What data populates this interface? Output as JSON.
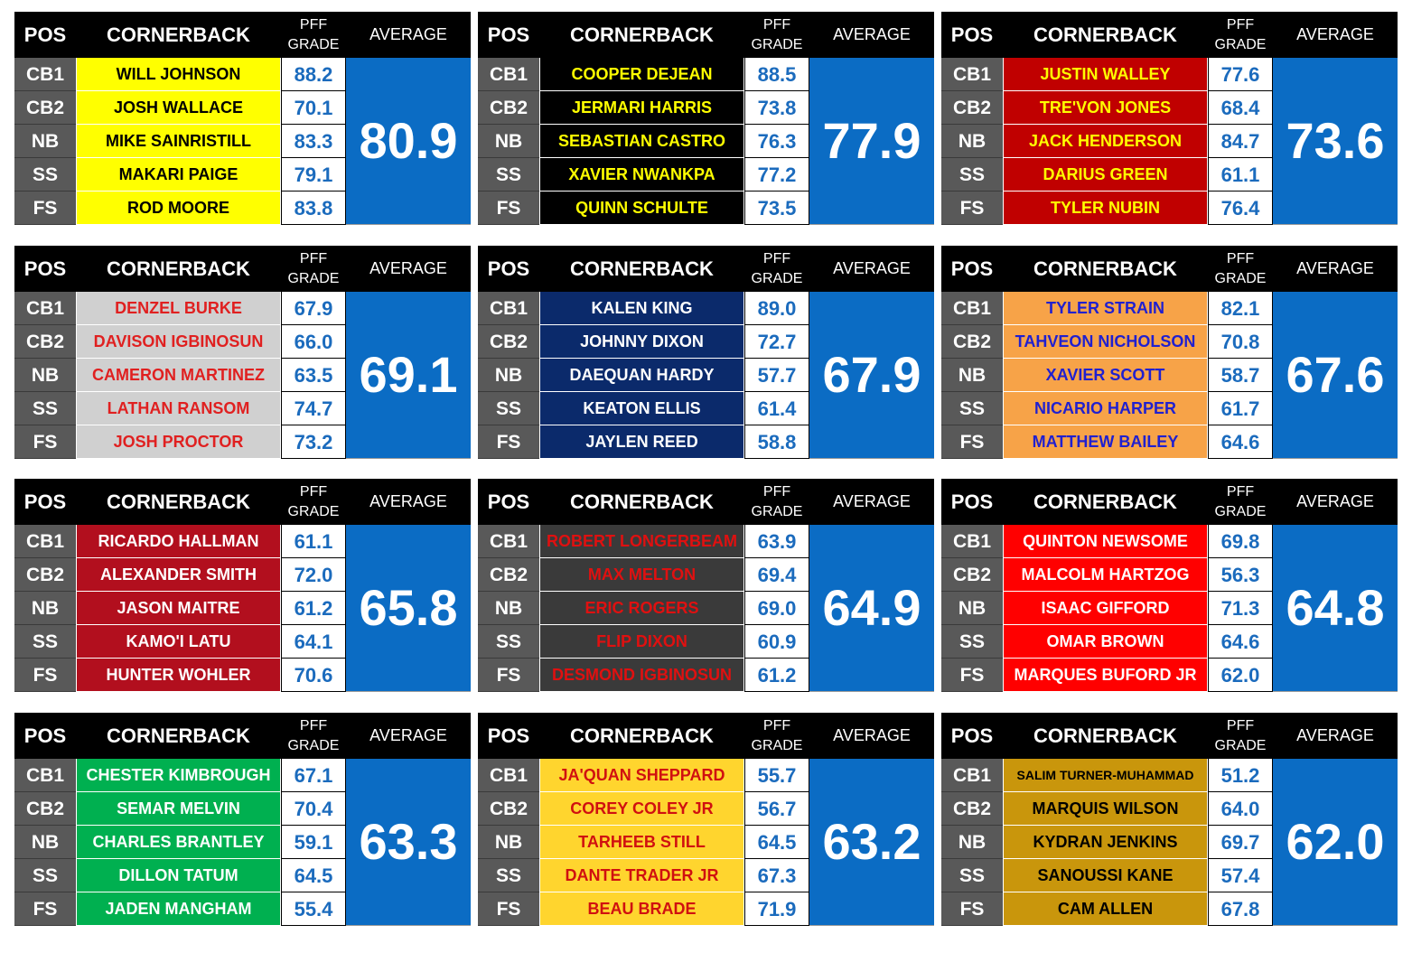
{
  "headers": {
    "pos": "POS",
    "cornerback": "CORNERBACK",
    "pff_line1": "PFF",
    "pff_line2": "GRADE",
    "average": "AVERAGE"
  },
  "positions": [
    "CB1",
    "CB2",
    "NB",
    "SS",
    "FS"
  ],
  "tables": [
    {
      "average": "80.9",
      "name_bg": "#ffff00",
      "name_color": "#000000",
      "rows": [
        {
          "name": "WILL JOHNSON",
          "grade": "88.2"
        },
        {
          "name": "JOSH WALLACE",
          "grade": "70.1"
        },
        {
          "name": "MIKE SAINRISTILL",
          "grade": "83.3"
        },
        {
          "name": "MAKARI PAIGE",
          "grade": "79.1"
        },
        {
          "name": "ROD MOORE",
          "grade": "83.8"
        }
      ]
    },
    {
      "average": "77.9",
      "name_bg": "#000000",
      "name_color": "#ffff00",
      "rows": [
        {
          "name": "COOPER DEJEAN",
          "grade": "88.5"
        },
        {
          "name": "JERMARI HARRIS",
          "grade": "73.8"
        },
        {
          "name": "SEBASTIAN CASTRO",
          "grade": "76.3"
        },
        {
          "name": "XAVIER NWANKPA",
          "grade": "77.2"
        },
        {
          "name": "QUINN SCHULTE",
          "grade": "73.5"
        }
      ]
    },
    {
      "average": "73.6",
      "name_bg": "#c00000",
      "name_color": "#ffff00",
      "rows": [
        {
          "name": "JUSTIN WALLEY",
          "grade": "77.6"
        },
        {
          "name": "TRE'VON JONES",
          "grade": "68.4"
        },
        {
          "name": "JACK HENDERSON",
          "grade": "84.7"
        },
        {
          "name": "DARIUS GREEN",
          "grade": "61.1"
        },
        {
          "name": "TYLER NUBIN",
          "grade": "76.4"
        }
      ]
    },
    {
      "average": "69.1",
      "name_bg": "#d0d0d0",
      "name_color": "#e02020",
      "rows": [
        {
          "name": "DENZEL BURKE",
          "grade": "67.9"
        },
        {
          "name": "DAVISON IGBINOSUN",
          "grade": "66.0"
        },
        {
          "name": "CAMERON MARTINEZ",
          "grade": "63.5"
        },
        {
          "name": "LATHAN RANSOM",
          "grade": "74.7"
        },
        {
          "name": "JOSH PROCTOR",
          "grade": "73.2"
        }
      ]
    },
    {
      "average": "67.9",
      "name_bg": "#0b2a6b",
      "name_color": "#ffffff",
      "rows": [
        {
          "name": "KALEN KING",
          "grade": "89.0"
        },
        {
          "name": "JOHNNY DIXON",
          "grade": "72.7"
        },
        {
          "name": "DAEQUAN HARDY",
          "grade": "57.7"
        },
        {
          "name": "KEATON ELLIS",
          "grade": "61.4"
        },
        {
          "name": "JAYLEN REED",
          "grade": "58.8"
        }
      ]
    },
    {
      "average": "67.6",
      "name_bg": "#f7a348",
      "name_color": "#2020d0",
      "rows": [
        {
          "name": "TYLER STRAIN",
          "grade": "82.1"
        },
        {
          "name": "TAHVEON NICHOLSON",
          "grade": "70.8"
        },
        {
          "name": "XAVIER SCOTT",
          "grade": "58.7"
        },
        {
          "name": "NICARIO HARPER",
          "grade": "61.7"
        },
        {
          "name": "MATTHEW BAILEY",
          "grade": "64.6"
        }
      ]
    },
    {
      "average": "65.8",
      "name_bg": "#b20f1e",
      "name_color": "#ffffff",
      "rows": [
        {
          "name": "RICARDO HALLMAN",
          "grade": "61.1"
        },
        {
          "name": "ALEXANDER SMITH",
          "grade": "72.0"
        },
        {
          "name": "JASON MAITRE",
          "grade": "61.2"
        },
        {
          "name": "KAMO'I LATU",
          "grade": "64.1"
        },
        {
          "name": "HUNTER WOHLER",
          "grade": "70.6"
        }
      ]
    },
    {
      "average": "64.9",
      "name_bg": "#3a3a3a",
      "name_color": "#e01010",
      "rows": [
        {
          "name": "ROBERT LONGERBEAM",
          "grade": "63.9"
        },
        {
          "name": "MAX MELTON",
          "grade": "69.4"
        },
        {
          "name": "ERIC ROGERS",
          "grade": "69.0"
        },
        {
          "name": "FLIP DIXON",
          "grade": "60.9"
        },
        {
          "name": "DESMOND IGBINOSUN",
          "grade": "61.2"
        }
      ]
    },
    {
      "average": "64.8",
      "name_bg": "#ff0000",
      "name_color": "#ffffff",
      "rows": [
        {
          "name": "QUINTON NEWSOME",
          "grade": "69.8"
        },
        {
          "name": "MALCOLM HARTZOG",
          "grade": "56.3"
        },
        {
          "name": "ISAAC GIFFORD",
          "grade": "71.3"
        },
        {
          "name": "OMAR BROWN",
          "grade": "64.6"
        },
        {
          "name": "MARQUES BUFORD JR",
          "grade": "62.0"
        }
      ]
    },
    {
      "average": "63.3",
      "name_bg": "#00b050",
      "name_color": "#ffffff",
      "rows": [
        {
          "name": "CHESTER KIMBROUGH",
          "grade": "67.1"
        },
        {
          "name": "SEMAR MELVIN",
          "grade": "70.4"
        },
        {
          "name": "CHARLES BRANTLEY",
          "grade": "59.1"
        },
        {
          "name": "DILLON TATUM",
          "grade": "64.5"
        },
        {
          "name": "JADEN MANGHAM",
          "grade": "55.4"
        }
      ]
    },
    {
      "average": "63.2",
      "name_bg": "#ffd52e",
      "name_color": "#d01010",
      "rows": [
        {
          "name": "JA'QUAN SHEPPARD",
          "grade": "55.7"
        },
        {
          "name": "COREY COLEY JR",
          "grade": "56.7"
        },
        {
          "name": "TARHEEB STILL",
          "grade": "64.5"
        },
        {
          "name": "DANTE TRADER JR",
          "grade": "67.3"
        },
        {
          "name": "BEAU BRADE",
          "grade": "71.9"
        }
      ]
    },
    {
      "average": "62.0",
      "name_bg": "#c9960c",
      "name_color": "#000000",
      "rows": [
        {
          "name": "SALIM TURNER-MUHAMMAD",
          "grade": "51.2",
          "small": true
        },
        {
          "name": "MARQUIS WILSON",
          "grade": "64.0"
        },
        {
          "name": "KYDRAN JENKINS",
          "grade": "69.7"
        },
        {
          "name": "SANOUSSI KANE",
          "grade": "57.4"
        },
        {
          "name": "CAM ALLEN",
          "grade": "67.8"
        }
      ]
    }
  ]
}
